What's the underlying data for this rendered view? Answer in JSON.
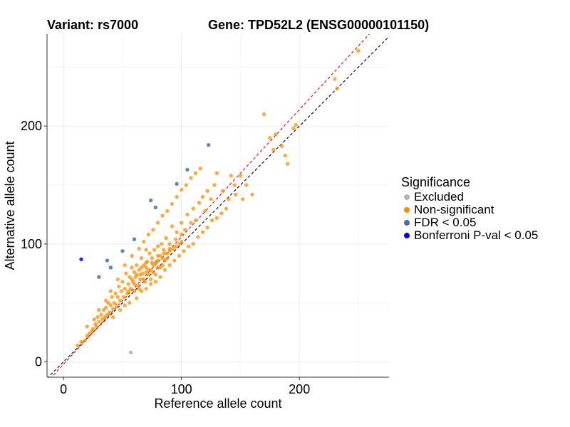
{
  "chart_data": {
    "type": "scatter",
    "title_left": "Variant: rs7000",
    "title_right": "Gene: TPD52L2 (ENSG00000101150)",
    "xlabel": "Reference allele count",
    "ylabel": "Alternative allele count",
    "xlim": [
      -14,
      276
    ],
    "ylim": [
      -13,
      278
    ],
    "xticks": [
      0,
      100,
      200
    ],
    "yticks": [
      0,
      100,
      200
    ],
    "grid": true,
    "legend": {
      "title": "Significance",
      "position": "right",
      "entries": [
        {
          "label": "Excluded",
          "color": "#b3b3b3"
        },
        {
          "label": "Non-significant",
          "color": "#ff8c00"
        },
        {
          "label": "FDR < 0.05",
          "color": "#4671a8"
        },
        {
          "label": "Bonferroni P-val < 0.05",
          "color": "#0000ff"
        }
      ]
    },
    "lines": [
      {
        "name": "identity",
        "color": "#000000",
        "slope": 1,
        "intercept": 0
      },
      {
        "name": "fit",
        "color": "#ff0000",
        "slope": 1.08,
        "intercept": -2
      }
    ],
    "series": [
      {
        "name": "Non-significant",
        "color": "#ff8c00",
        "points": [
          [
            250,
            264
          ],
          [
            230,
            240
          ],
          [
            232,
            232
          ],
          [
            197,
            201
          ],
          [
            195,
            198
          ],
          [
            170,
            210
          ],
          [
            175,
            190
          ],
          [
            180,
            193
          ],
          [
            185,
            183
          ],
          [
            190,
            168
          ],
          [
            188,
            175
          ],
          [
            178,
            180
          ],
          [
            160,
            142
          ],
          [
            155,
            150
          ],
          [
            150,
            158
          ],
          [
            145,
            150
          ],
          [
            142,
            158
          ],
          [
            135,
            145
          ],
          [
            138,
            130
          ],
          [
            130,
            160
          ],
          [
            128,
            150
          ],
          [
            125,
            138
          ],
          [
            122,
            145
          ],
          [
            120,
            128
          ],
          [
            118,
            140
          ],
          [
            115,
            135
          ],
          [
            112,
            120
          ],
          [
            110,
            130
          ],
          [
            108,
            118
          ],
          [
            105,
            125
          ],
          [
            103,
            112
          ],
          [
            100,
            108
          ],
          [
            100,
            118
          ],
          [
            98,
            100
          ],
          [
            96,
            110
          ],
          [
            95,
            104
          ],
          [
            93,
            96
          ],
          [
            92,
            115
          ],
          [
            90,
            100
          ],
          [
            88,
            92
          ],
          [
            87,
            105
          ],
          [
            85,
            95
          ],
          [
            84,
            88
          ],
          [
            83,
            100
          ],
          [
            82,
            80
          ],
          [
            80,
            90
          ],
          [
            80,
            98
          ],
          [
            79,
            85
          ],
          [
            78,
            74
          ],
          [
            77,
            95
          ],
          [
            76,
            82
          ],
          [
            75,
            88
          ],
          [
            74,
            70
          ],
          [
            73,
            92
          ],
          [
            72,
            78
          ],
          [
            71,
            85
          ],
          [
            70,
            76
          ],
          [
            70,
            95
          ],
          [
            69,
            68
          ],
          [
            68,
            82
          ],
          [
            67,
            75
          ],
          [
            66,
            88
          ],
          [
            65,
            70
          ],
          [
            64,
            78
          ],
          [
            63,
            65
          ],
          [
            62,
            82
          ],
          [
            61,
            72
          ],
          [
            60,
            60
          ],
          [
            60,
            76
          ],
          [
            59,
            68
          ],
          [
            58,
            80
          ],
          [
            57,
            62
          ],
          [
            56,
            72
          ],
          [
            55,
            66
          ],
          [
            54,
            58
          ],
          [
            53,
            75
          ],
          [
            52,
            62
          ],
          [
            51,
            55
          ],
          [
            50,
            68
          ],
          [
            49,
            60
          ],
          [
            48,
            52
          ],
          [
            47,
            64
          ],
          [
            46,
            55
          ],
          [
            45,
            48
          ],
          [
            44,
            58
          ],
          [
            43,
            50
          ],
          [
            42,
            45
          ],
          [
            41,
            55
          ],
          [
            40,
            48
          ],
          [
            39,
            42
          ],
          [
            38,
            50
          ],
          [
            37,
            40
          ],
          [
            36,
            46
          ],
          [
            35,
            38
          ],
          [
            34,
            44
          ],
          [
            33,
            36
          ],
          [
            32,
            40
          ],
          [
            30,
            34
          ],
          [
            29,
            38
          ],
          [
            28,
            30
          ],
          [
            27,
            32
          ],
          [
            25,
            28
          ],
          [
            24,
            26
          ],
          [
            22,
            24
          ],
          [
            20,
            22
          ],
          [
            18,
            18
          ],
          [
            15,
            17
          ],
          [
            12,
            14
          ],
          [
            20,
            30
          ],
          [
            26,
            36
          ],
          [
            30,
            44
          ],
          [
            36,
            52
          ],
          [
            42,
            38
          ],
          [
            48,
            44
          ],
          [
            52,
            48
          ],
          [
            56,
            50
          ],
          [
            62,
            54
          ],
          [
            66,
            60
          ],
          [
            70,
            62
          ],
          [
            74,
            66
          ],
          [
            78,
            68
          ],
          [
            82,
            72
          ],
          [
            86,
            78
          ],
          [
            90,
            82
          ],
          [
            94,
            86
          ],
          [
            98,
            90
          ],
          [
            102,
            94
          ],
          [
            106,
            98
          ],
          [
            110,
            100
          ],
          [
            114,
            106
          ],
          [
            118,
            110
          ],
          [
            122,
            114
          ],
          [
            126,
            120
          ],
          [
            130,
            122
          ],
          [
            134,
            126
          ],
          [
            140,
            138
          ],
          [
            146,
            142
          ],
          [
            152,
            138
          ],
          [
            40,
            60
          ],
          [
            46,
            70
          ],
          [
            52,
            82
          ],
          [
            58,
            90
          ],
          [
            64,
            96
          ],
          [
            68,
            102
          ],
          [
            72,
            108
          ],
          [
            76,
            112
          ],
          [
            80,
            118
          ],
          [
            84,
            124
          ],
          [
            88,
            128
          ],
          [
            92,
            134
          ],
          [
            96,
            140
          ],
          [
            100,
            146
          ],
          [
            104,
            150
          ],
          [
            108,
            156
          ],
          [
            112,
            160
          ],
          [
            116,
            164
          ],
          [
            58,
            70
          ],
          [
            62,
            74
          ],
          [
            66,
            80
          ],
          [
            70,
            84
          ],
          [
            74,
            78
          ],
          [
            78,
            84
          ],
          [
            82,
            90
          ],
          [
            86,
            86
          ],
          [
            90,
            94
          ],
          [
            64,
            62
          ],
          [
            68,
            70
          ],
          [
            72,
            74
          ],
          [
            76,
            76
          ],
          [
            80,
            80
          ],
          [
            84,
            82
          ],
          [
            88,
            88
          ],
          [
            55,
            60
          ],
          [
            60,
            66
          ],
          [
            65,
            74
          ],
          [
            70,
            80
          ],
          [
            75,
            84
          ],
          [
            80,
            86
          ],
          [
            85,
            92
          ],
          [
            90,
            96
          ],
          [
            95,
            98
          ],
          [
            100,
            102
          ]
        ]
      },
      {
        "name": "Excluded",
        "color": "#b3b3b3",
        "points": [
          [
            57,
            8
          ]
        ]
      },
      {
        "name": "FDR < 0.05",
        "color": "#4671a8",
        "points": [
          [
            123,
            184
          ],
          [
            105,
            163
          ],
          [
            96,
            151
          ],
          [
            78,
            131
          ],
          [
            74,
            137
          ],
          [
            60,
            104
          ],
          [
            50,
            94
          ],
          [
            37,
            86
          ],
          [
            40,
            80
          ],
          [
            30,
            72
          ]
        ]
      },
      {
        "name": "Bonferroni P-val < 0.05",
        "color": "#0000ff",
        "points": [
          [
            15,
            87
          ]
        ]
      }
    ]
  }
}
